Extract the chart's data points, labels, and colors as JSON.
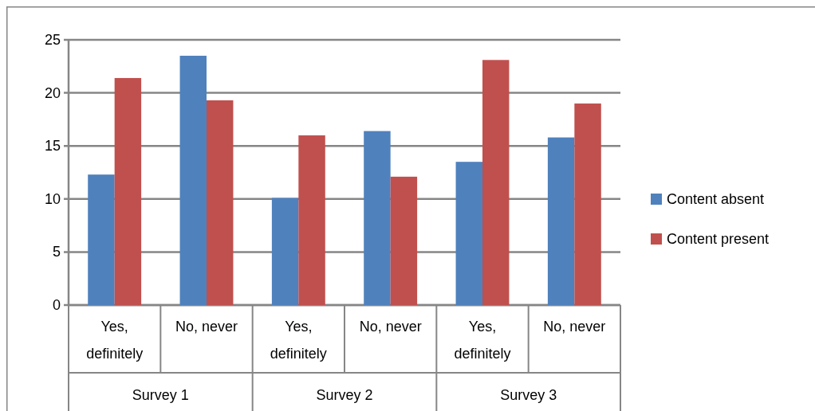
{
  "chart_data": {
    "type": "bar",
    "categories": [
      "Yes, definitely",
      "No, never",
      "Yes, definitely",
      "No, never",
      "Yes, definitely",
      "No, never"
    ],
    "series": [
      {
        "name": "Content absent",
        "color": "#4f81bd",
        "values": [
          12.3,
          23.5,
          10.1,
          16.4,
          13.5,
          15.8
        ]
      },
      {
        "name": "Content present",
        "color": "#c0504d",
        "values": [
          21.4,
          19.3,
          16.0,
          12.1,
          23.1,
          19.0
        ]
      }
    ],
    "ylim": [
      0,
      25
    ],
    "yticks": [
      0,
      5,
      10,
      15,
      20,
      25
    ],
    "grid": "y",
    "legend": "right",
    "annotations": [
      "Survey 1",
      "Survey 2",
      "Survey 3"
    ]
  }
}
